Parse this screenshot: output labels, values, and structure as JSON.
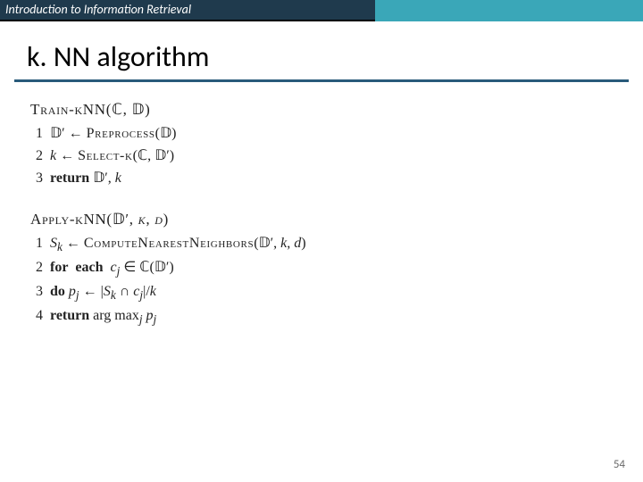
{
  "header": {
    "course": "Introduction to Information Retrieval"
  },
  "title": "k. NN algorithm",
  "page_number": "54",
  "colors": {
    "header_left_bg": "#1f3a4d",
    "header_right_bg": "#3aa7b8",
    "rule": "#295a7a"
  },
  "train": {
    "head": "Train-kNN(ℂ, 𝔻)",
    "lines": [
      {
        "n": "1",
        "body": "𝔻′ ← Preprocess(𝔻)",
        "sc_parts": [
          "Preprocess"
        ]
      },
      {
        "n": "2",
        "body": "k ← Select-k(ℂ, 𝔻′)",
        "sc_parts": [
          "Select-k"
        ]
      },
      {
        "n": "3",
        "body": "return 𝔻′, k",
        "kw": "return"
      }
    ]
  },
  "apply": {
    "head": "Apply-kNN(𝔻′, k, d)",
    "lines": [
      {
        "n": "1",
        "body": "Sₖ ← ComputeNearestNeighbors(𝔻′, k, d)",
        "sc_parts": [
          "ComputeNearestNeighbors"
        ]
      },
      {
        "n": "2",
        "body": "for  each  cⱼ ∈ ℂ(𝔻′)",
        "kw": "for  each"
      },
      {
        "n": "3",
        "body": "do pⱼ ← |Sₖ ∩ cⱼ|/k",
        "kw": "do"
      },
      {
        "n": "4",
        "body": "return arg maxⱼ pⱼ",
        "kw": "return"
      }
    ]
  }
}
